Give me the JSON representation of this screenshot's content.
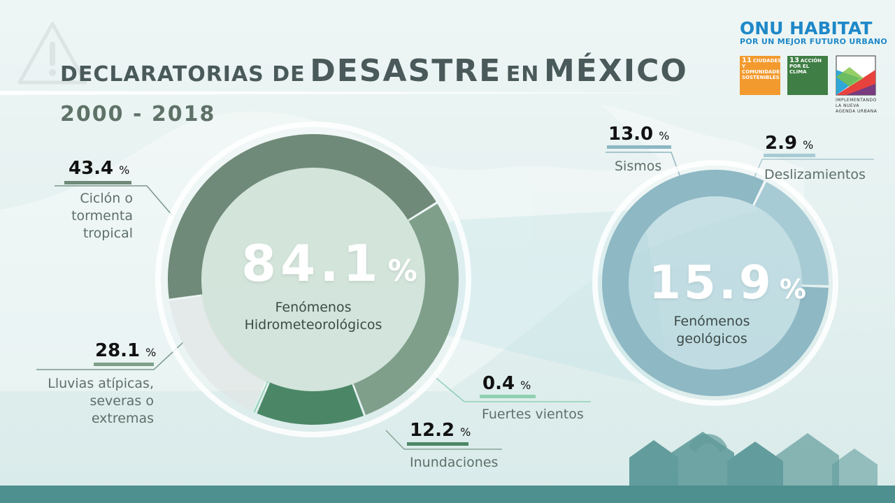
{
  "title": {
    "part1": "DECLARATORIAS DE",
    "part2": "DESASTRE",
    "part3": "EN",
    "part4": "MÉXICO"
  },
  "subtitle": "2000 - 2018",
  "logos": {
    "onu_habitat": "ONU HABITAT",
    "onu_habitat_tagline": "POR UN MEJOR FUTURO URBANO",
    "sdg11": {
      "num": "11",
      "text": "CIUDADES Y COMUNIDADES SOSTENIBLES",
      "color": "#f39a2e"
    },
    "sdg13": {
      "num": "13",
      "text": "ACCIÓN POR EL CLIMA",
      "color": "#3f7e44"
    },
    "nau_text": "IMPLEMENTANDO LA NUEVA AGENDA URBANA"
  },
  "chart_data": {
    "type": "pie",
    "unit": "%",
    "groups": [
      {
        "name": "Fenómenos Hidrometeorológicos",
        "value": 84.1,
        "value_label": "84.1",
        "slices": [
          {
            "name": "Ciclón o tormenta tropical",
            "value": 43.4,
            "value_label": "43.4",
            "color": "#6f8a78"
          },
          {
            "name": "Lluvias atípicas, severas o extremas",
            "value": 28.1,
            "value_label": "28.1",
            "color": "#7f9f8a"
          },
          {
            "name": "Inundaciones",
            "value": 12.2,
            "value_label": "12.2",
            "color": "#4b8766"
          },
          {
            "name": "Fuertes vientos",
            "value": 0.4,
            "value_label": "0.4",
            "color": "#8fd0b2"
          }
        ]
      },
      {
        "name": "Fenómenos geológicos",
        "value": 15.9,
        "value_label": "15.9",
        "slices": [
          {
            "name": "Sismos",
            "value": 13.0,
            "value_label": "13.0",
            "color": "#8db8c4"
          },
          {
            "name": "Deslizamientos",
            "value": 2.9,
            "value_label": "2.9",
            "color": "#a7cbd4"
          }
        ]
      }
    ]
  },
  "colors": {
    "title": "#4a5a5a",
    "subtitle": "#5f7268",
    "onu_blue": "#1e88c8",
    "bottom_bar": "#4e8f8f",
    "rest_segment": "#dfe5e4"
  }
}
